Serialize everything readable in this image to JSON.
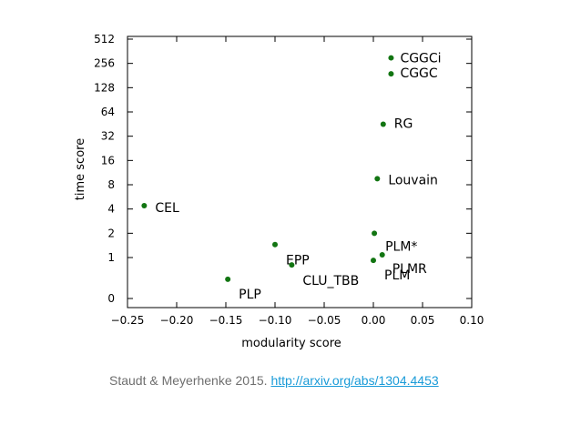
{
  "chart_data": {
    "type": "scatter",
    "xlabel": "modularity score",
    "ylabel": "time score",
    "xlim": [
      -0.25,
      0.1
    ],
    "x_ticks": [
      "−0.25",
      "−0.20",
      "−0.15",
      "−0.10",
      "−0.05",
      "0.00",
      "0.05",
      "0.10"
    ],
    "y_ticks": [
      "0",
      "1",
      "2",
      "4",
      "8",
      "16",
      "32",
      "64",
      "128",
      "256",
      "512"
    ],
    "grid": false,
    "marker_color": "#127512",
    "points": [
      {
        "label": "CGGCi",
        "x": 0.018,
        "y": 300
      },
      {
        "label": "CGGC",
        "x": 0.018,
        "y": 190
      },
      {
        "label": "RG",
        "x": 0.01,
        "y": 45
      },
      {
        "label": "Louvain",
        "x": 0.004,
        "y": 9.5
      },
      {
        "label": "CEL",
        "x": -0.233,
        "y": 4.4
      },
      {
        "label": "PLM*",
        "x": 0.001,
        "y": 2.0
      },
      {
        "label": "EPP",
        "x": -0.1,
        "y": 1.45
      },
      {
        "label": "PLMR",
        "x": 0.009,
        "y": 1.08
      },
      {
        "label": "PLM",
        "x": 0.0,
        "y": 0.93
      },
      {
        "label": "CLU_TBB",
        "x": -0.083,
        "y": 0.82
      },
      {
        "label": "PLP",
        "x": -0.148,
        "y": 0.47
      }
    ]
  },
  "caption": {
    "text": "Staudt & Meyerhenke 2015. ",
    "link": "http://arxiv.org/abs/1304.4453"
  }
}
